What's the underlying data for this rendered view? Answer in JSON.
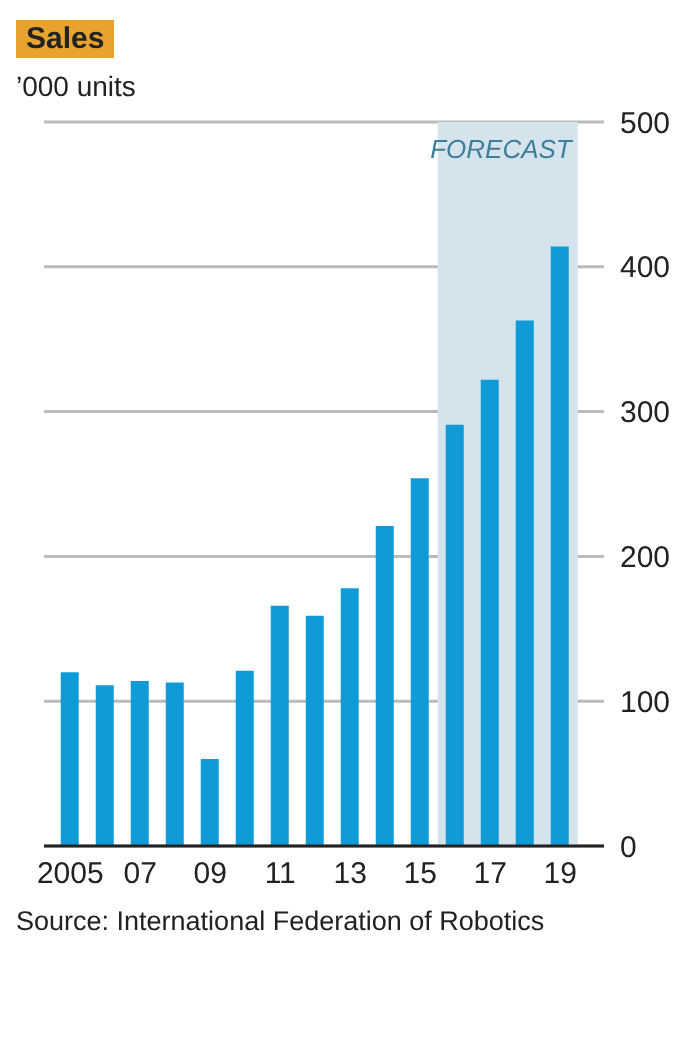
{
  "chart_data": {
    "type": "bar",
    "title": "Sales",
    "subtitle": "’000 units",
    "x": [
      2005,
      2006,
      2007,
      2008,
      2009,
      2010,
      2011,
      2012,
      2013,
      2014,
      2015,
      2016,
      2017,
      2018,
      2019
    ],
    "values": [
      120,
      111,
      114,
      113,
      60,
      121,
      166,
      159,
      178,
      221,
      254,
      291,
      322,
      363,
      414
    ],
    "color": "#0f9bd7",
    "xlim": [
      2004.25,
      2020.25
    ],
    "xticks": [
      {
        "value": 2005,
        "label": "2005"
      },
      {
        "value": 2007,
        "label": "07"
      },
      {
        "value": 2009,
        "label": "09"
      },
      {
        "value": 2011,
        "label": "11"
      },
      {
        "value": 2013,
        "label": "13"
      },
      {
        "value": 2015,
        "label": "15"
      },
      {
        "value": 2017,
        "label": "17"
      },
      {
        "value": 2019,
        "label": "19"
      }
    ],
    "ylim": [
      0,
      500
    ],
    "yticks": [
      0,
      100,
      200,
      300,
      400,
      500
    ],
    "grid": "y",
    "bands": [
      {
        "axis": "x",
        "from": 2015.5,
        "to": 2019.5,
        "label": "FORECAST",
        "color": "#d5e3ed"
      }
    ],
    "annotations": [
      "Source: International Federation of Robotics"
    ]
  }
}
